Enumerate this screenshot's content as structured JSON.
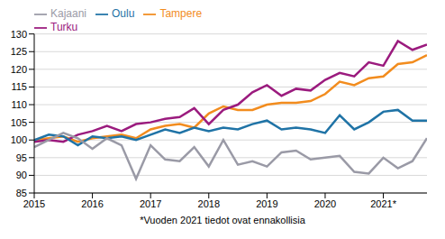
{
  "chart_data": {
    "type": "line",
    "annotation": "*Vuoden 2021 tiedot ovat ennakollisia",
    "x": [
      2015,
      2015.25,
      2015.5,
      2015.75,
      2016,
      2016.25,
      2016.5,
      2016.75,
      2017,
      2017.25,
      2017.5,
      2017.75,
      2018,
      2018.25,
      2018.5,
      2018.75,
      2019,
      2019.25,
      2019.5,
      2019.75,
      2020,
      2020.25,
      2020.5,
      2020.75,
      2021,
      2021.25,
      2021.5,
      2021.75
    ],
    "xlim": [
      2015,
      2021.75
    ],
    "xticks": [
      2015,
      2016,
      2017,
      2018,
      2019,
      2020,
      {
        "value": 2021,
        "label": "2021*"
      }
    ],
    "ylim": [
      85,
      130
    ],
    "yticks": [
      85,
      90,
      95,
      100,
      105,
      110,
      115,
      120,
      125,
      130
    ],
    "grid": true,
    "legend": "top",
    "series": [
      {
        "name": "Tampere",
        "color": "#f28c1e",
        "values": [
          100,
          100.5,
          101,
          99.5,
          100.5,
          101,
          101.5,
          100.5,
          103,
          104,
          104.5,
          103.5,
          107.5,
          109.5,
          108.5,
          108.5,
          110,
          110.5,
          110.5,
          111,
          113,
          116.5,
          115.5,
          117.5,
          118,
          121.5,
          122,
          124
        ]
      },
      {
        "name": "Turku",
        "color": "#9b1b7e",
        "values": [
          99.5,
          100,
          99.5,
          101.5,
          102.5,
          104,
          102.5,
          104.5,
          105,
          106,
          106.5,
          109,
          104.5,
          108.5,
          110,
          113.5,
          115.5,
          112.5,
          114.5,
          114,
          117,
          119,
          118,
          122,
          121,
          128,
          125.5,
          127
        ]
      },
      {
        "name": "Oulu",
        "color": "#1f73a6",
        "values": [
          100,
          101.5,
          101,
          98.5,
          101,
          100.5,
          101,
          100,
          101.5,
          103,
          102,
          103.5,
          102.5,
          103.5,
          103,
          104.5,
          105.5,
          103,
          103.5,
          103,
          102,
          107,
          103,
          105,
          108,
          108.5,
          105.5,
          105.5
        ]
      },
      {
        "name": "Kajaani",
        "color": "#9a9aa6",
        "values": [
          98,
          100,
          102,
          100.5,
          97.5,
          100.5,
          98.5,
          89,
          98.5,
          94.5,
          94,
          98,
          92.5,
          100,
          93,
          94,
          92.5,
          96.5,
          97,
          94.5,
          95,
          95.5,
          91,
          90.5,
          95,
          92,
          94,
          100.5
        ]
      }
    ]
  }
}
